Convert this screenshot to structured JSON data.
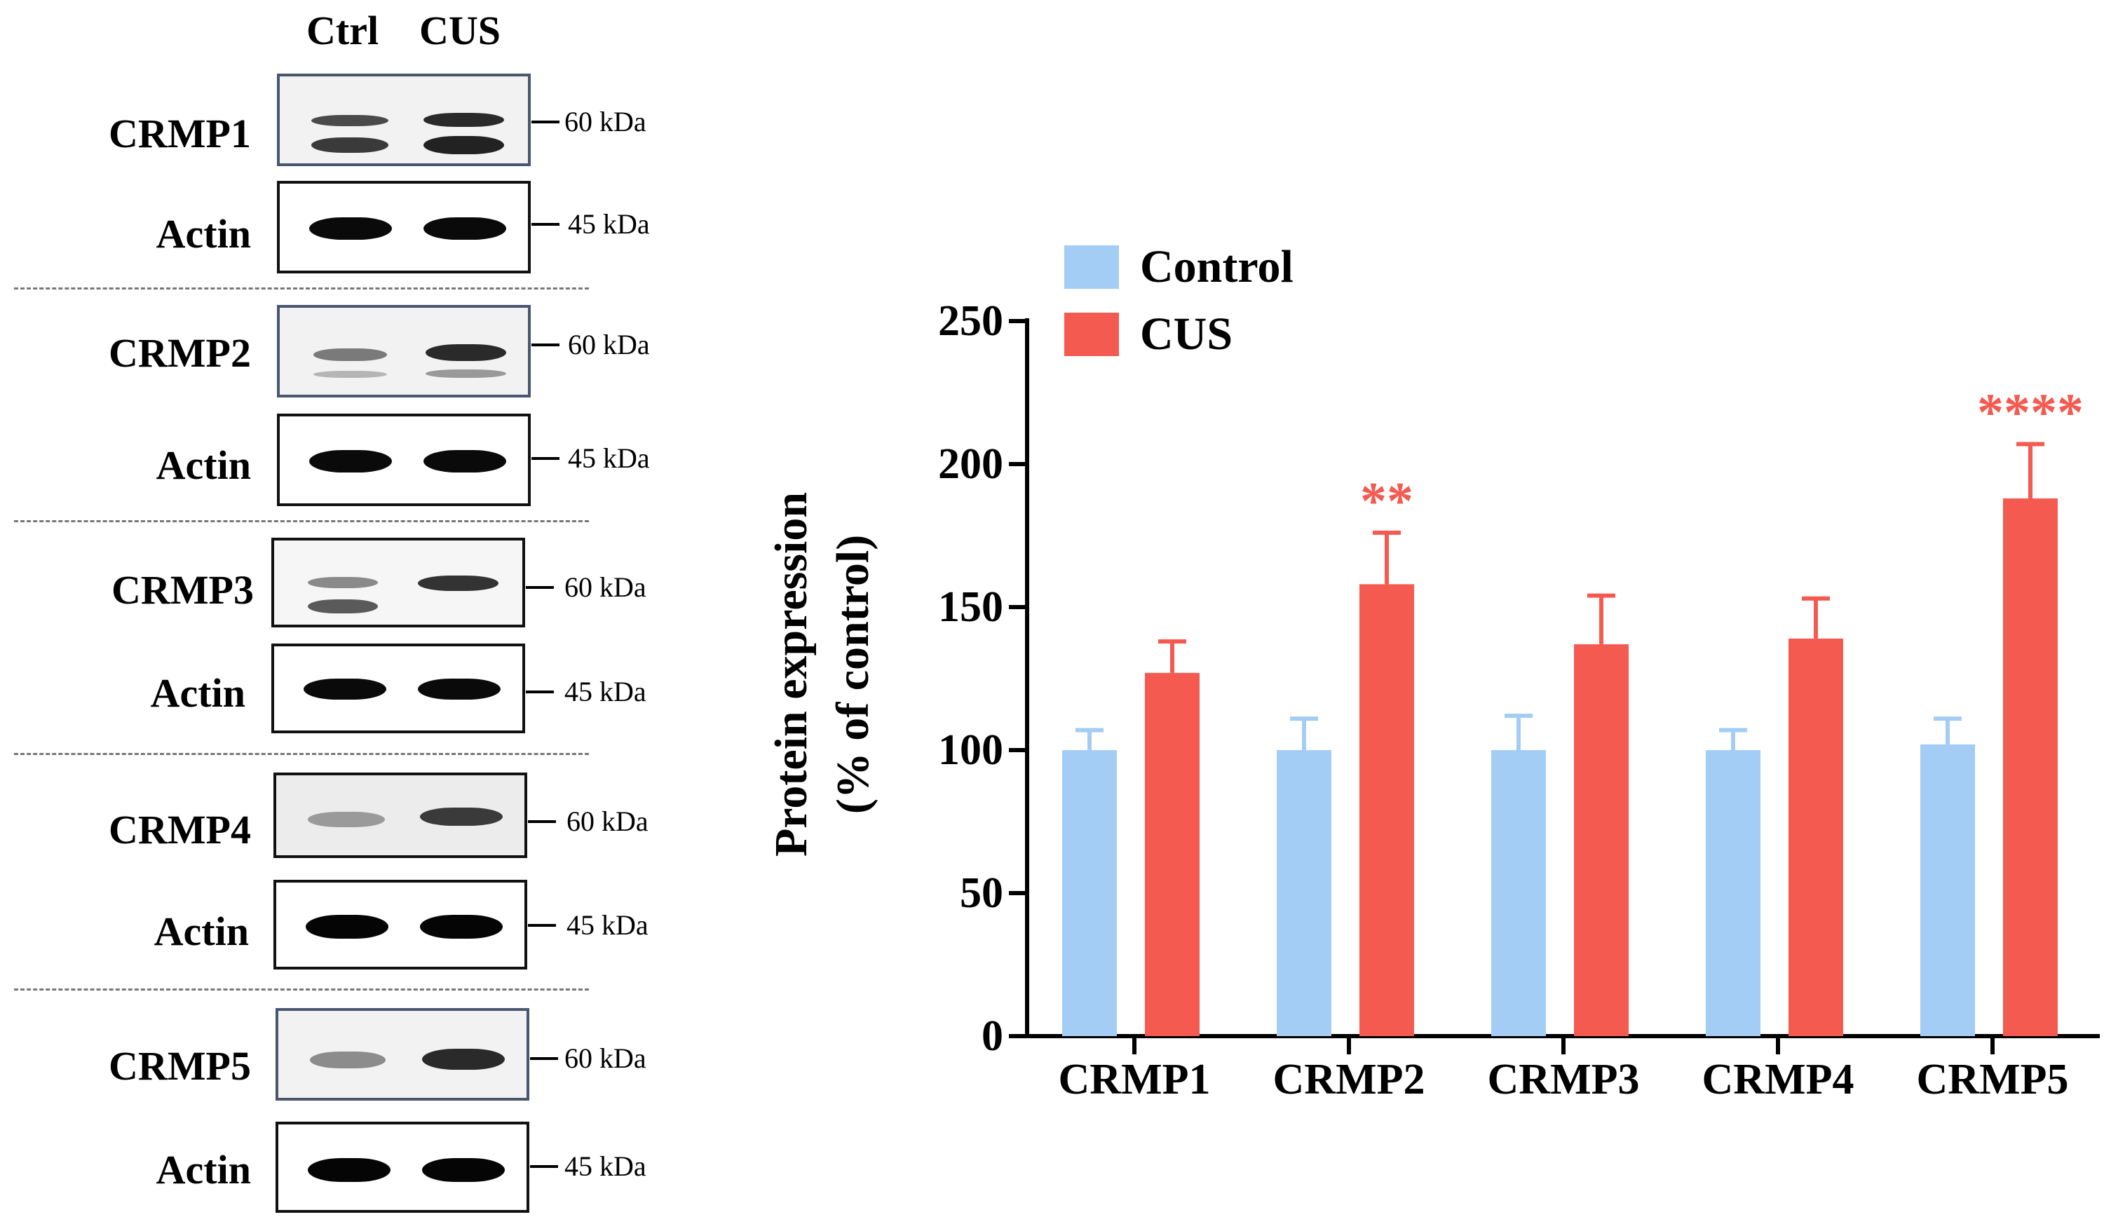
{
  "blot": {
    "lane_labels": [
      "Ctrl",
      "CUS"
    ],
    "rows": [
      {
        "protein": "CRMP1",
        "target_kda": "60 kDa",
        "actin": "Actin",
        "actin_kda": "45 kDa"
      },
      {
        "protein": "CRMP2",
        "target_kda": "60 kDa",
        "actin": "Actin",
        "actin_kda": "45 kDa"
      },
      {
        "protein": "CRMP3",
        "target_kda": "60 kDa",
        "actin": "Actin",
        "actin_kda": "45 kDa"
      },
      {
        "protein": "CRMP4",
        "target_kda": "60 kDa",
        "actin": "Actin",
        "actin_kda": "45 kDa"
      },
      {
        "protein": "CRMP5",
        "target_kda": "60 kDa",
        "actin": "Actin",
        "actin_kda": "45 kDa"
      }
    ]
  },
  "chart_data": {
    "type": "bar",
    "ylabel": "Protein expression (% of control)",
    "ylabel_line1": "Protein expression",
    "ylabel_line2": "(% of control)",
    "categories": [
      "CRMP1",
      "CRMP2",
      "CRMP3",
      "CRMP4",
      "CRMP5"
    ],
    "ylim": [
      0,
      250
    ],
    "yticks": [
      0,
      50,
      100,
      150,
      200,
      250
    ],
    "legend_position": "top-left",
    "series": [
      {
        "name": "Control",
        "color": "#a3cdf4",
        "values": [
          100,
          100,
          100,
          100,
          102
        ],
        "errors": [
          7,
          11,
          12,
          7,
          9
        ]
      },
      {
        "name": "CUS",
        "color": "#f55a50",
        "values": [
          127,
          158,
          137,
          139,
          188
        ],
        "errors": [
          11,
          18,
          17,
          14,
          19
        ]
      }
    ],
    "significance": [
      "",
      "**",
      "",
      "",
      "****"
    ],
    "significance_color": "#f55a50"
  }
}
